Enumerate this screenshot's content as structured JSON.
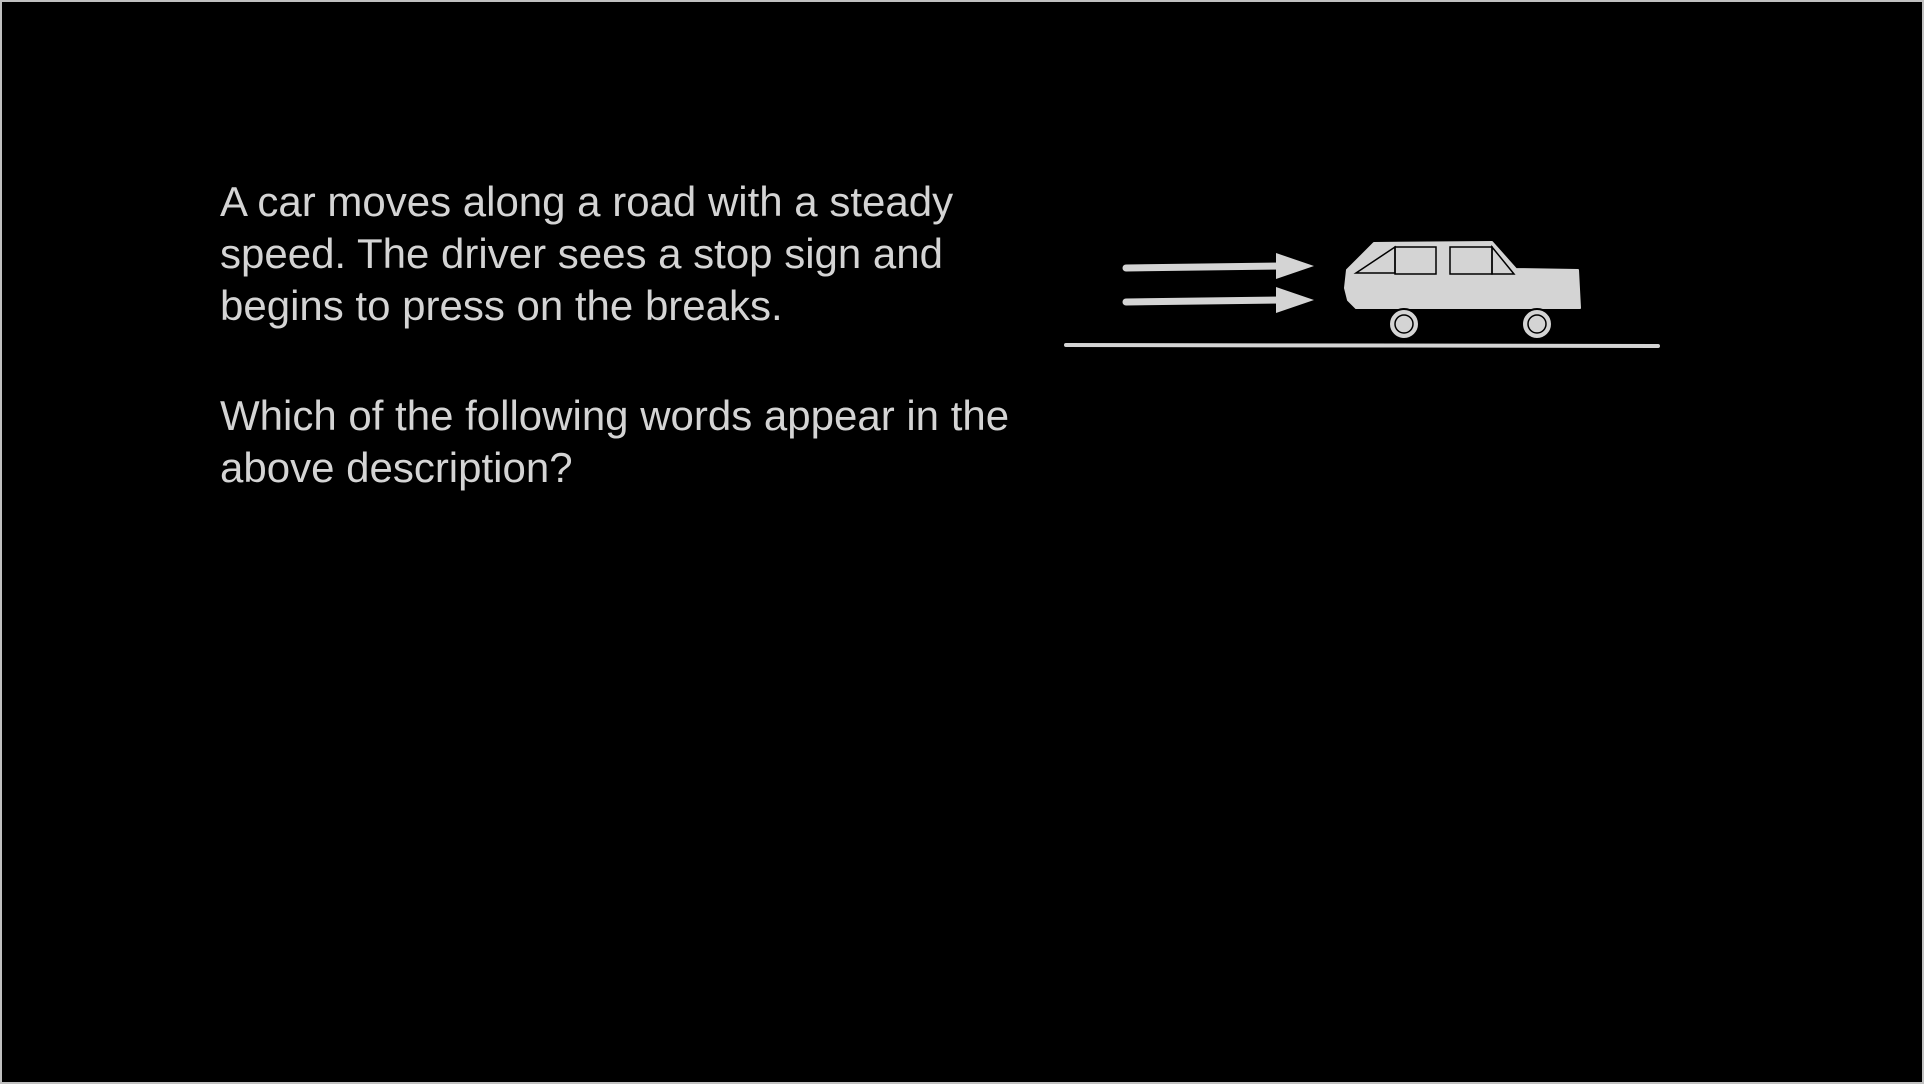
{
  "slide": {
    "description": "A car moves along a road with a steady speed. The driver sees a stop sign and begins to press on the breaks.",
    "question": "Which of the following words appear in the above description?"
  },
  "illustration": {
    "icons": [
      "motion-arrows-icon",
      "car-icon",
      "road-line"
    ],
    "colors": {
      "background": "#000000",
      "foreground": "#d4d4d4"
    }
  }
}
